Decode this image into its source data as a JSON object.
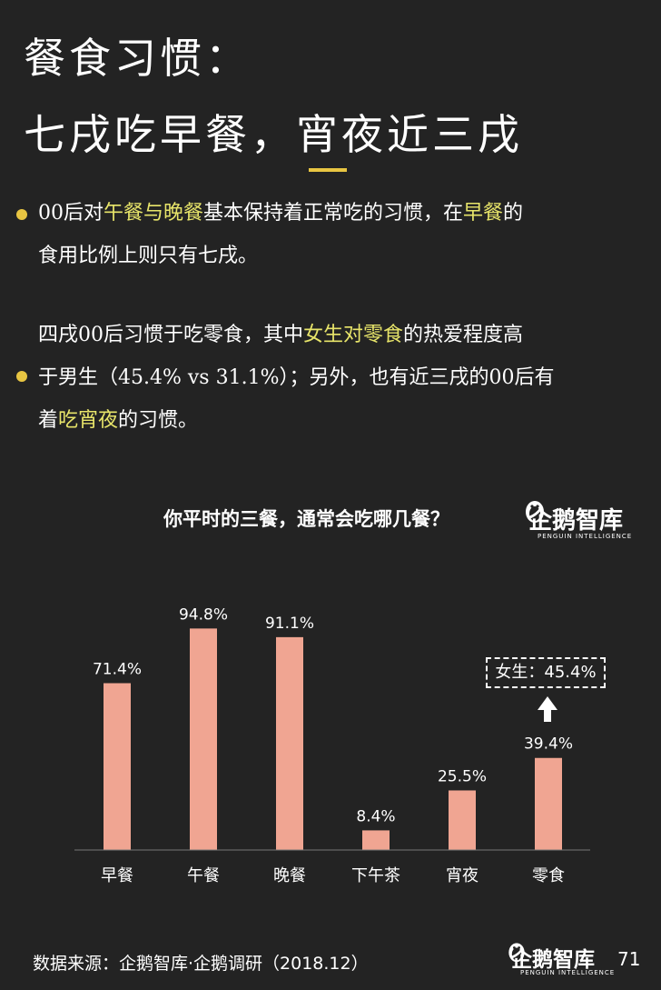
{
  "title": {
    "line1": "餐食习惯：",
    "line2": "七戌吃早餐，宵夜近三戌"
  },
  "paragraph1": {
    "t1": "00后对",
    "h1": "午餐与晚餐",
    "t2": "基本保持着正常吃的习惯，在",
    "h2": "早餐",
    "t3": "的",
    "t4": "食用比例上则只有七戌。"
  },
  "paragraph2": {
    "t1": "四戌00后习惯于吃零食，其中",
    "h1": "女生对零食",
    "t2": "的热爱程度高",
    "t3": "于男生（45.4% vs 31.1%）；另外，也有近三戌的00后有",
    "t4": "着",
    "h2": "吃宵夜",
    "t5": "的习惯。"
  },
  "chart_question": "你平时的三餐，通常会吃哪几餐？",
  "logo": {
    "name": "企鹅智库",
    "sub": "PENGUIN INTELLIGENCE"
  },
  "callout": "女生：45.4%",
  "footer": {
    "source": "数据来源：企鹅智库·企鹅调研（2018.12）",
    "page": "71"
  },
  "colors": {
    "bar": "#f0a592",
    "accent": "#e8c542",
    "highlight": "#e8e56a",
    "background": "#232323"
  },
  "chart_data": {
    "type": "bar",
    "categories": [
      "早餐",
      "午餐",
      "晚餐",
      "下午茶",
      "宵夜",
      "零食"
    ],
    "values": [
      71.4,
      94.8,
      91.1,
      8.4,
      25.5,
      39.4
    ],
    "value_labels": [
      "71.4%",
      "94.8%",
      "91.1%",
      "8.4%",
      "25.5%",
      "39.4%"
    ],
    "unit": "%",
    "title": "你平时的三餐，通常会吃哪几餐？",
    "xlabel": "",
    "ylabel": "",
    "ylim": [
      0,
      100
    ],
    "grid": false,
    "legend": "none"
  }
}
